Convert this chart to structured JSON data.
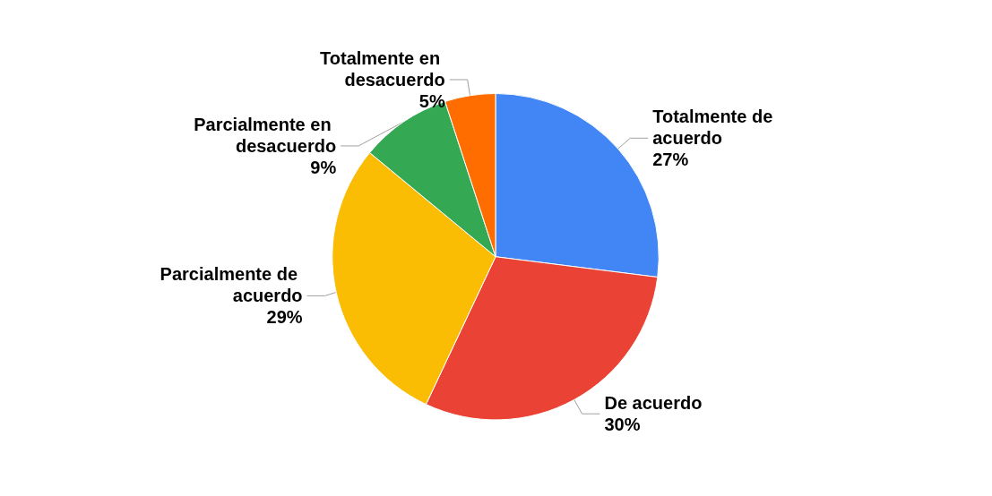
{
  "chart_data": {
    "type": "pie",
    "categories": [
      "Totalmente de acuerdo",
      "De acuerdo",
      "Parcialmente de acuerdo",
      "Parcialmente en desacuerdo",
      "Totalmente en desacuerdo"
    ],
    "values": [
      27,
      30,
      29,
      9,
      5
    ],
    "colors": [
      "#4285f4",
      "#ea4335",
      "#fbbc04",
      "#34a853",
      "#ff6d01"
    ],
    "value_labels": [
      "27%",
      "30%",
      "29%",
      "9%",
      "5%"
    ],
    "legend": false
  }
}
